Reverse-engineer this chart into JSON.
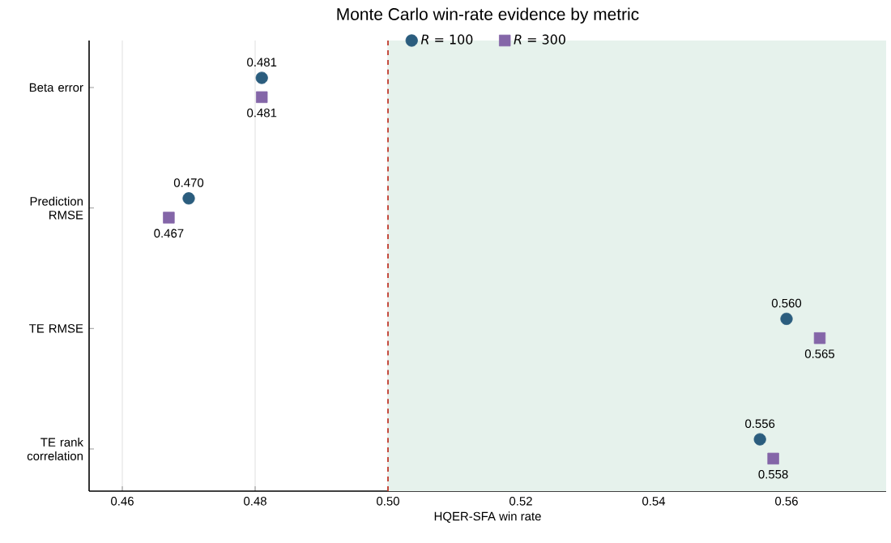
{
  "chart_data": {
    "type": "scatter",
    "orientation": "horizontal",
    "title": "Monte Carlo win-rate evidence by metric",
    "xlabel": "HQER-SFA win rate",
    "categories": [
      "Beta error",
      "Prediction RMSE",
      "TE RMSE",
      "TE rank correlation"
    ],
    "series": [
      {
        "name": "*R* = 100",
        "color": "#2b5d7e",
        "marker": "circle",
        "values": [
          0.481,
          0.47,
          0.56,
          0.556
        ],
        "value_labels": [
          "0.481",
          "0.470",
          "0.560",
          "0.556"
        ]
      },
      {
        "name": "*R* = 300",
        "color": "#8466a8",
        "marker": "square",
        "values": [
          0.481,
          0.467,
          0.565,
          0.558
        ],
        "value_labels": [
          "0.481",
          "0.467",
          "0.565",
          "0.558"
        ]
      }
    ],
    "xlim": [
      0.455,
      0.575
    ],
    "xticks": [
      0.46,
      0.48,
      {
        "value": 0.5,
        "label": "0.50"
      },
      0.52,
      0.54,
      0.56
    ],
    "ref_lines": [
      {
        "axis": "x",
        "value": 0.5,
        "color": "#c0392b",
        "line_style": "dashed"
      }
    ],
    "bands": [
      {
        "axis": "x",
        "from": 0.5,
        "to": 0.575,
        "color": "#e6f2ec"
      }
    ],
    "grid": "x",
    "legend": "top"
  }
}
